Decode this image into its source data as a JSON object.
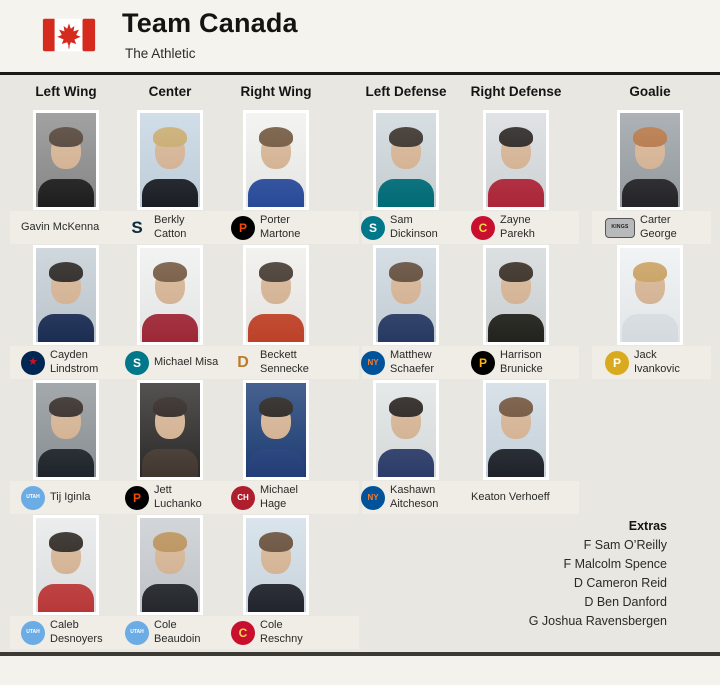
{
  "header": {
    "title": "Team Canada",
    "subtitle": "The Athletic",
    "flag_icon": "canada-flag-icon"
  },
  "colors": {
    "page_bg": "#e9e7e1",
    "panel_bg": "#f4f3ee",
    "strip_bg": "#efede6",
    "divider": "#191917",
    "flag_red": "#d52b1e"
  },
  "columns": [
    {
      "label": "Left Wing",
      "players": [
        {
          "name": "Gavin McKenna",
          "logo": null,
          "photo": {
            "bg": "#8d8d8d",
            "jersey": "#1f1f1f",
            "hair": "#4a3a2e"
          }
        },
        {
          "name": "Cayden Lindstrom",
          "logo": {
            "icon": "columbus-blue-jackets-logo",
            "shape": "circle",
            "bg": "#002654",
            "fg": "#ce1126",
            "glyph": "★",
            "size": 11
          },
          "photo": {
            "bg": "#c5cfd6",
            "jersey": "#1d2f57",
            "hair": "#1e1a17"
          }
        },
        {
          "name": "Tij Iginla",
          "logo": {
            "icon": "utah-hockey-club-logo",
            "shape": "circle",
            "bg": "#6cace4",
            "fg": "#ffffff",
            "glyph": "UTAH",
            "size": 5
          },
          "photo": {
            "bg": "#90969a",
            "jersey": "#20262c",
            "hair": "#2a211c"
          }
        },
        {
          "name": "Caleb Desnoyers",
          "logo": {
            "icon": "utah-hockey-club-logo",
            "shape": "circle",
            "bg": "#6cace4",
            "fg": "#ffffff",
            "glyph": "UTAH",
            "size": 5
          },
          "photo": {
            "bg": "#e7e9ea",
            "jersey": "#c23b3b",
            "hair": "#241d18"
          }
        }
      ]
    },
    {
      "label": "Center",
      "players": [
        {
          "name": "Berkly Catton",
          "logo": {
            "icon": "seattle-kraken-logo",
            "shape": "letter",
            "bg": "none",
            "fg": "#0a2a3f",
            "glyph": "S",
            "size": 17
          },
          "photo": {
            "bg": "#c7d7e4",
            "jersey": "#1c1f26",
            "hair": "#c9a96a"
          }
        },
        {
          "name": "Michael Misa",
          "logo": {
            "icon": "san-jose-sharks-logo",
            "shape": "circle",
            "bg": "#007889",
            "fg": "#ffffff",
            "glyph": "S",
            "size": 12
          },
          "photo": {
            "bg": "#eff0f0",
            "jersey": "#a52a3a",
            "hair": "#6e5138"
          }
        },
        {
          "name": "Jett Luchanko",
          "logo": {
            "icon": "philadelphia-flyers-logo",
            "shape": "circle",
            "bg": "#000000",
            "fg": "#f74902",
            "glyph": "P",
            "size": 12
          },
          "photo": {
            "bg": "#2e2c2b",
            "jersey": "#453a32",
            "hair": "#241c18"
          }
        },
        {
          "name": "Cole Beaudoin",
          "logo": {
            "icon": "utah-hockey-club-logo",
            "shape": "circle",
            "bg": "#6cace4",
            "fg": "#ffffff",
            "glyph": "UTAH",
            "size": 5
          },
          "photo": {
            "bg": "#c9cdd1",
            "jersey": "#26292e",
            "hair": "#b98d52"
          }
        }
      ]
    },
    {
      "label": "Right Wing",
      "players": [
        {
          "name": "Porter Martone",
          "logo": {
            "icon": "philadelphia-flyers-logo",
            "shape": "circle",
            "bg": "#000000",
            "fg": "#f74902",
            "glyph": "P",
            "size": 12
          },
          "photo": {
            "bg": "#f1f1ef",
            "jersey": "#2b4ea0",
            "hair": "#6b4f35"
          }
        },
        {
          "name": "Beckett Sennecke",
          "logo": {
            "icon": "anaheim-ducks-logo",
            "shape": "letter",
            "bg": "none",
            "fg": "#c07a2e",
            "glyph": "D",
            "size": 16
          },
          "photo": {
            "bg": "#f0efec",
            "jersey": "#c6452a",
            "hair": "#3c2f26"
          }
        },
        {
          "name": "Michael Hage",
          "logo": {
            "icon": "montreal-canadiens-logo",
            "shape": "circle",
            "bg": "#af1e2d",
            "fg": "#ffffff",
            "glyph": "CH",
            "size": 8
          },
          "photo": {
            "bg": "#1e3f77",
            "jersey": "#24407e",
            "hair": "#1c1714"
          }
        },
        {
          "name": "Cole Reschny",
          "logo": {
            "icon": "calgary-flames-logo",
            "shape": "circle",
            "bg": "#c8102e",
            "fg": "#f7d54a",
            "glyph": "C",
            "size": 12
          },
          "photo": {
            "bg": "#d2dee8",
            "jersey": "#23262e",
            "hair": "#5f4530"
          }
        }
      ]
    },
    {
      "label": "Left Defense",
      "players": [
        {
          "name": "Sam Dickinson",
          "logo": {
            "icon": "san-jose-sharks-logo",
            "shape": "circle",
            "bg": "#007889",
            "fg": "#ffffff",
            "glyph": "S",
            "size": 12
          },
          "photo": {
            "bg": "#cfd8dc",
            "jersey": "#00707c",
            "hair": "#2f2620"
          }
        },
        {
          "name": "Matthew Schaefer",
          "logo": {
            "icon": "new-york-islanders-logo",
            "shape": "circle",
            "bg": "#00539b",
            "fg": "#f47d30",
            "glyph": "NY",
            "size": 8
          },
          "photo": {
            "bg": "#ccd7de",
            "jersey": "#2a3c66",
            "hair": "#5a4330"
          }
        },
        {
          "name": "Kashawn Aitcheson",
          "logo": {
            "icon": "new-york-islanders-logo",
            "shape": "circle",
            "bg": "#00539b",
            "fg": "#f47d30",
            "glyph": "NY",
            "size": 8
          },
          "photo": {
            "bg": "#e0e4e5",
            "jersey": "#2e3f6e",
            "hair": "#1d1713"
          }
        }
      ]
    },
    {
      "label": "Right Defense",
      "players": [
        {
          "name": "Zayne Parekh",
          "logo": {
            "icon": "calgary-flames-logo",
            "shape": "circle",
            "bg": "#c8102e",
            "fg": "#f7d54a",
            "glyph": "C",
            "size": 12
          },
          "photo": {
            "bg": "#d9dde0",
            "jersey": "#b3273a",
            "hair": "#1f1a18"
          }
        },
        {
          "name": "Harrison Brunicke",
          "logo": {
            "icon": "pittsburgh-penguins-logo",
            "shape": "circle",
            "bg": "#000000",
            "fg": "#fcb514",
            "glyph": "P",
            "size": 12
          },
          "photo": {
            "bg": "#d4d9db",
            "jersey": "#24241f",
            "hair": "#2c2218"
          }
        },
        {
          "name": "Keaton Verhoeff",
          "logo": null,
          "photo": {
            "bg": "#d0dbe4",
            "jersey": "#20242c",
            "hair": "#6b4c33"
          }
        }
      ]
    },
    {
      "label": "Goalie",
      "players": [
        {
          "name": "Carter George",
          "logo": {
            "icon": "la-kings-logo",
            "shape": "shield",
            "bg": "#b8b9bb",
            "fg": "#1a1a1a",
            "glyph": "KINGS",
            "size": 5
          },
          "photo": {
            "bg": "#9ba1a6",
            "jersey": "#26262a",
            "hair": "#b5713f"
          }
        },
        {
          "name": "Jack Ivankovic",
          "logo": {
            "icon": "nashville-predators-logo",
            "shape": "circle",
            "bg": "#d9a91e",
            "fg": "#ffffff",
            "glyph": "P",
            "size": 12
          },
          "photo": {
            "bg": "#eef1f3",
            "jersey": "#dfe5ea",
            "hair": "#c99e5a"
          }
        }
      ]
    }
  ],
  "extras": {
    "title": "Extras",
    "items": [
      "F Sam O’Reilly",
      "F Malcolm Spence",
      "D Cameron Reid",
      "D Ben Danford",
      "G Joshua Ravensbergen"
    ]
  }
}
